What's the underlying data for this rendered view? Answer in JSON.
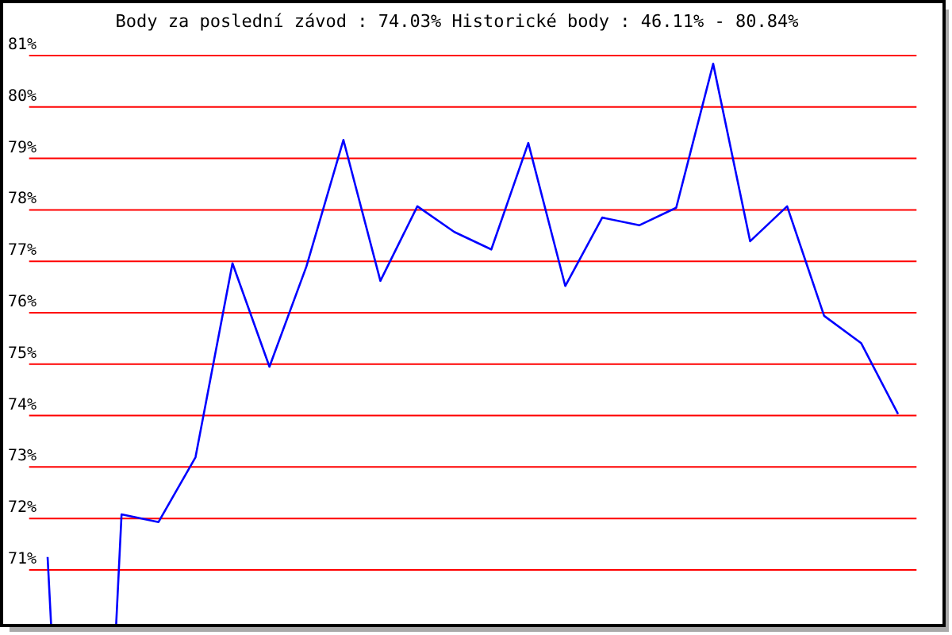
{
  "chart_data": {
    "type": "line",
    "title": "Body za poslední závod : 74.03%  Historické body : 46.11% - 80.84%",
    "categories": [
      null,
      null,
      null,
      null,
      null,
      null,
      null,
      null,
      null,
      null,
      null,
      null,
      null,
      null,
      null,
      null,
      null,
      null,
      null,
      null,
      null,
      null,
      null,
      null
    ],
    "series": [
      {
        "color": "#0000ff",
        "values": [
          71.25,
          null,
          72.08,
          71.93,
          73.19,
          76.96,
          74.95,
          76.9,
          79.36,
          76.62,
          78.07,
          77.57,
          77.23,
          79.3,
          76.52,
          77.85,
          77.7,
          78.04,
          80.84,
          77.39,
          78.07,
          75.94,
          75.41,
          74.03
        ]
      }
    ],
    "ylim": [
      69.95,
      81
    ],
    "yticks": [
      {
        "value": 71,
        "label": "71%"
      },
      {
        "value": 72,
        "label": "72%"
      },
      {
        "value": 73,
        "label": "73%"
      },
      {
        "value": 74,
        "label": "74%"
      },
      {
        "value": 75,
        "label": "75%"
      },
      {
        "value": 76,
        "label": "76%"
      },
      {
        "value": 77,
        "label": "77%"
      },
      {
        "value": 78,
        "label": "78%"
      },
      {
        "value": 79,
        "label": "79%"
      },
      {
        "value": 80,
        "label": "80%"
      },
      {
        "value": 81,
        "label": "81%"
      }
    ],
    "grid": "y",
    "marker": "none",
    "line_style": "solid"
  }
}
